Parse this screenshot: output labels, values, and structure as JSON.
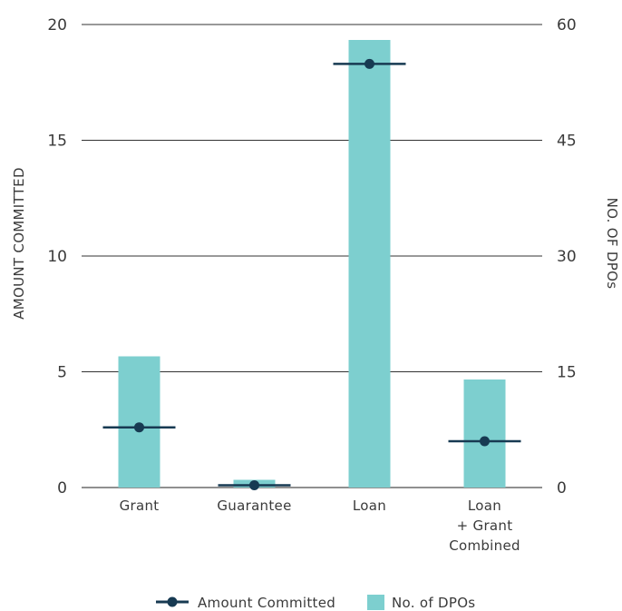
{
  "chart_data": {
    "type": "bar",
    "categories": [
      [
        "Grant"
      ],
      [
        "Guarantee"
      ],
      [
        "Loan"
      ],
      [
        "Loan",
        "+ Grant",
        "Combined"
      ]
    ],
    "series": [
      {
        "name": "No. of DPOs",
        "kind": "bar",
        "axis": "right",
        "color": "#7dcfcf",
        "values": [
          17,
          1,
          58,
          14
        ]
      },
      {
        "name": "Amount Committed",
        "kind": "marker",
        "axis": "left",
        "color": "#173a52",
        "values": [
          2.6,
          0.1,
          18.3,
          2.0
        ]
      }
    ],
    "y_left": {
      "label": "AMOUNT COMMITTED",
      "range": [
        0,
        20
      ],
      "ticks": [
        0,
        5,
        10,
        15,
        20
      ]
    },
    "y_right": {
      "label": "NO. OF DPOs",
      "range": [
        0,
        60
      ],
      "ticks": [
        0,
        15,
        30,
        45,
        60
      ]
    },
    "grid": true,
    "legend": "bottom-center"
  }
}
